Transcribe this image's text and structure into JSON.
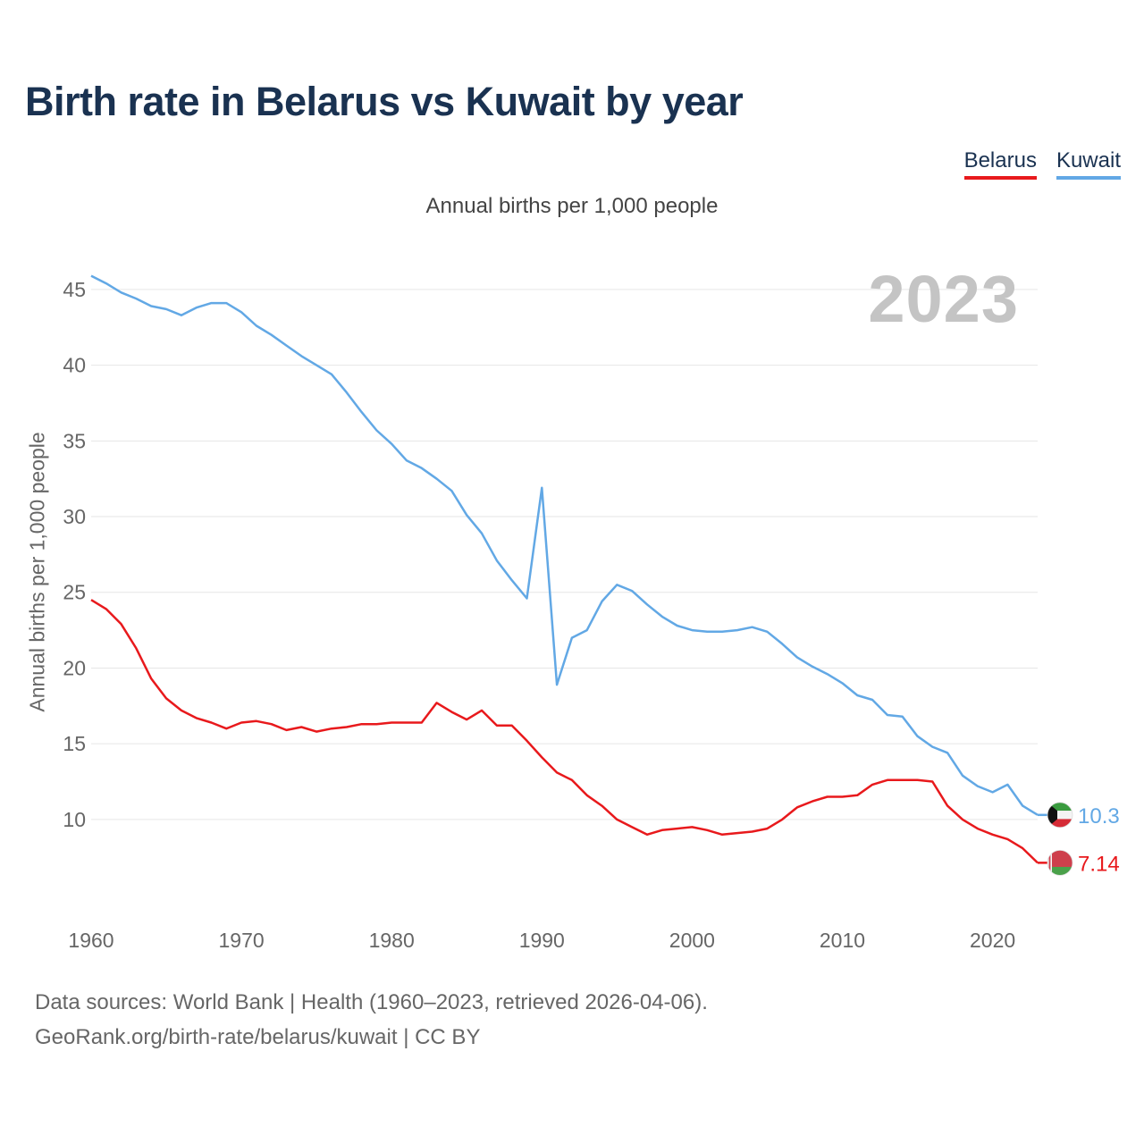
{
  "chart_data": {
    "type": "line",
    "title": "Birth rate in Belarus vs Kuwait by year",
    "subtitle": "Annual births per 1,000 people",
    "ylabel": "Annual births per 1,000 people",
    "xlabel": "",
    "xlim": [
      1960,
      2023
    ],
    "ylim": [
      4.8,
      47
    ],
    "yticks": [
      10,
      15,
      20,
      25,
      30,
      35,
      40,
      45
    ],
    "xticks": [
      1960,
      1970,
      1980,
      1990,
      2000,
      2010,
      2020
    ],
    "year_label": "2023",
    "grid": true,
    "legend_position": "top-right",
    "x": [
      1960,
      1961,
      1962,
      1963,
      1964,
      1965,
      1966,
      1967,
      1968,
      1969,
      1970,
      1971,
      1972,
      1973,
      1974,
      1975,
      1976,
      1977,
      1978,
      1979,
      1980,
      1981,
      1982,
      1983,
      1984,
      1985,
      1986,
      1987,
      1988,
      1989,
      1990,
      1991,
      1992,
      1993,
      1994,
      1995,
      1996,
      1997,
      1998,
      1999,
      2000,
      2001,
      2002,
      2003,
      2004,
      2005,
      2006,
      2007,
      2008,
      2009,
      2010,
      2011,
      2012,
      2013,
      2014,
      2015,
      2016,
      2017,
      2018,
      2019,
      2020,
      2021,
      2022,
      2023
    ],
    "series": [
      {
        "name": "Belarus",
        "color": "#e8191c",
        "flag": "belarus-flag",
        "end_label": "7.14",
        "values": [
          24.5,
          23.9,
          22.9,
          21.3,
          19.3,
          18.0,
          17.2,
          16.7,
          16.4,
          16.0,
          16.4,
          16.5,
          16.3,
          15.9,
          16.1,
          15.8,
          16.0,
          16.1,
          16.3,
          16.3,
          16.4,
          16.4,
          16.4,
          17.7,
          17.1,
          16.6,
          17.2,
          16.2,
          16.2,
          15.2,
          14.1,
          13.1,
          12.6,
          11.6,
          10.9,
          10.0,
          9.5,
          9.0,
          9.3,
          9.4,
          9.5,
          9.3,
          9.0,
          9.1,
          9.2,
          9.4,
          10.0,
          10.8,
          11.2,
          11.5,
          11.5,
          11.6,
          12.3,
          12.6,
          12.6,
          12.6,
          12.5,
          10.9,
          10.0,
          9.4,
          9.0,
          8.7,
          8.1,
          7.14
        ]
      },
      {
        "name": "Kuwait",
        "color": "#62a8e5",
        "flag": "kuwait-flag",
        "end_label": "10.3",
        "values": [
          45.9,
          45.4,
          44.8,
          44.4,
          43.9,
          43.7,
          43.3,
          43.8,
          44.1,
          44.1,
          43.5,
          42.6,
          42.0,
          41.3,
          40.6,
          40.0,
          39.4,
          38.2,
          36.9,
          35.7,
          34.8,
          33.7,
          33.2,
          32.5,
          31.7,
          30.1,
          28.9,
          27.1,
          25.8,
          24.6,
          31.9,
          18.9,
          22.0,
          22.5,
          24.4,
          25.5,
          25.1,
          24.2,
          23.4,
          22.8,
          22.5,
          22.4,
          22.4,
          22.5,
          22.7,
          22.4,
          21.6,
          20.7,
          20.1,
          19.6,
          19.0,
          18.2,
          17.9,
          16.9,
          16.8,
          15.5,
          14.8,
          14.4,
          12.9,
          12.2,
          11.8,
          12.3,
          10.9,
          10.3
        ]
      }
    ]
  },
  "source_line1": "Data sources: World Bank | Health (1960–2023, retrieved 2026-04-06).",
  "source_line2": "GeoRank.org/birth-rate/belarus/kuwait | CC BY"
}
